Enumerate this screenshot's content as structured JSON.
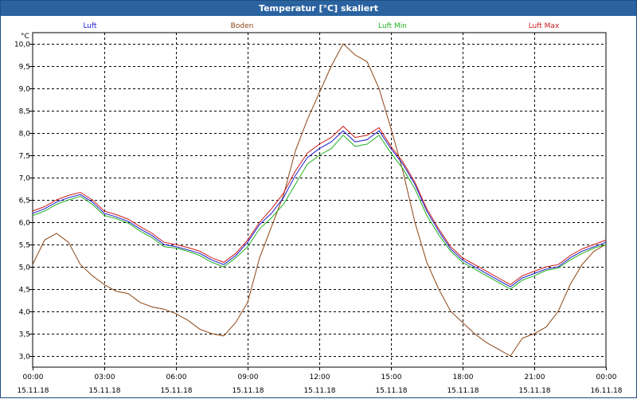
{
  "window": {
    "title": "Temperatur [°C] skaliert"
  },
  "chart_data": {
    "type": "line",
    "title": "Temperatur [°C] skaliert",
    "ylabel": "°C",
    "ylim": [
      2.75,
      10.25
    ],
    "yticks": [
      "10,0",
      "9,5",
      "9,0",
      "8,5",
      "8,0",
      "7,5",
      "7,0",
      "6,5",
      "6,0",
      "5,5",
      "5,0",
      "4,5",
      "4,0",
      "3,5",
      "3,0"
    ],
    "xticks": [
      {
        "time": "00:00",
        "date": "15.11.18"
      },
      {
        "time": "03:00",
        "date": "15.11.18"
      },
      {
        "time": "06:00",
        "date": "15.11.18"
      },
      {
        "time": "09:00",
        "date": "15.11.18"
      },
      {
        "time": "12:00",
        "date": "15.11.18"
      },
      {
        "time": "15:00",
        "date": "15.11.18"
      },
      {
        "time": "18:00",
        "date": "15.11.18"
      },
      {
        "time": "21:00",
        "date": "15.11.18"
      },
      {
        "time": "00:00",
        "date": "16.11.18"
      }
    ],
    "grid": true,
    "series": [
      {
        "name": "Luft",
        "color": "#1a1acc",
        "x": [
          0,
          0.5,
          1,
          1.5,
          2,
          2.5,
          3,
          3.5,
          4,
          4.5,
          5,
          5.5,
          6,
          6.5,
          7,
          7.5,
          8,
          8.5,
          9,
          9.5,
          10,
          10.5,
          11,
          11.5,
          12,
          12.5,
          13,
          13.5,
          14,
          14.5,
          15,
          15.5,
          16,
          16.5,
          17,
          17.5,
          18,
          18.5,
          19,
          19.5,
          20,
          20.5,
          21,
          21.5,
          22,
          22.5,
          23,
          23.5,
          24
        ],
        "values": [
          6.2,
          6.3,
          6.45,
          6.55,
          6.62,
          6.45,
          6.2,
          6.12,
          6.02,
          5.85,
          5.7,
          5.5,
          5.45,
          5.38,
          5.3,
          5.15,
          5.05,
          5.25,
          5.55,
          5.95,
          6.2,
          6.55,
          7.05,
          7.45,
          7.65,
          7.8,
          8.05,
          7.8,
          7.85,
          8.05,
          7.65,
          7.3,
          6.85,
          6.25,
          5.8,
          5.4,
          5.15,
          5.0,
          4.85,
          4.7,
          4.55,
          4.75,
          4.85,
          4.95,
          5.0,
          5.2,
          5.35,
          5.45,
          5.55
        ]
      },
      {
        "name": "Boden",
        "color": "#8b4513",
        "x": [
          0,
          0.5,
          1,
          1.5,
          2,
          2.5,
          3,
          3.5,
          4,
          4.5,
          5,
          5.5,
          6,
          6.5,
          7,
          7.5,
          8,
          8.5,
          9,
          9.5,
          10,
          10.5,
          11,
          11.5,
          12,
          12.5,
          13,
          13.5,
          14,
          14.5,
          15,
          15.5,
          16,
          16.5,
          17,
          17.5,
          18,
          18.5,
          19,
          19.5,
          20,
          20.5,
          21,
          21.5,
          22,
          22.5,
          23,
          23.5,
          24
        ],
        "values": [
          5.05,
          5.6,
          5.75,
          5.55,
          5.05,
          4.8,
          4.6,
          4.45,
          4.4,
          4.2,
          4.1,
          4.05,
          3.95,
          3.8,
          3.6,
          3.5,
          3.45,
          3.75,
          4.2,
          5.2,
          5.9,
          6.6,
          7.6,
          8.3,
          8.9,
          9.5,
          10.0,
          9.75,
          9.6,
          9.0,
          8.1,
          7.15,
          6.0,
          5.1,
          4.5,
          4.0,
          3.75,
          3.5,
          3.3,
          3.15,
          3.0,
          3.4,
          3.5,
          3.65,
          4.0,
          4.6,
          5.05,
          5.35,
          5.5
        ]
      },
      {
        "name": "Luft Min",
        "color": "#20b020",
        "x": [
          0,
          0.5,
          1,
          1.5,
          2,
          2.5,
          3,
          3.5,
          4,
          4.5,
          5,
          5.5,
          6,
          6.5,
          7,
          7.5,
          8,
          8.5,
          9,
          9.5,
          10,
          10.5,
          11,
          11.5,
          12,
          12.5,
          13,
          13.5,
          14,
          14.5,
          15,
          15.5,
          16,
          16.5,
          17,
          17.5,
          18,
          18.5,
          19,
          19.5,
          20,
          20.5,
          21,
          21.5,
          22,
          22.5,
          23,
          23.5,
          24
        ],
        "values": [
          6.15,
          6.25,
          6.4,
          6.5,
          6.58,
          6.4,
          6.15,
          6.08,
          5.98,
          5.8,
          5.65,
          5.45,
          5.42,
          5.35,
          5.25,
          5.1,
          5.0,
          5.2,
          5.45,
          5.85,
          6.1,
          6.4,
          6.85,
          7.3,
          7.5,
          7.65,
          7.95,
          7.7,
          7.75,
          7.95,
          7.55,
          7.2,
          6.75,
          6.15,
          5.72,
          5.35,
          5.1,
          4.95,
          4.8,
          4.65,
          4.5,
          4.7,
          4.8,
          4.92,
          4.97,
          5.15,
          5.3,
          5.42,
          5.5
        ]
      },
      {
        "name": "Luft Max",
        "color": "#cc1a1a",
        "x": [
          0,
          0.5,
          1,
          1.5,
          2,
          2.5,
          3,
          3.5,
          4,
          4.5,
          5,
          5.5,
          6,
          6.5,
          7,
          7.5,
          8,
          8.5,
          9,
          9.5,
          10,
          10.5,
          11,
          11.5,
          12,
          12.5,
          13,
          13.5,
          14,
          14.5,
          15,
          15.5,
          16,
          16.5,
          17,
          17.5,
          18,
          18.5,
          19,
          19.5,
          20,
          20.5,
          21,
          21.5,
          22,
          22.5,
          23,
          23.5,
          24
        ],
        "values": [
          6.25,
          6.35,
          6.5,
          6.6,
          6.67,
          6.5,
          6.25,
          6.17,
          6.07,
          5.9,
          5.75,
          5.55,
          5.5,
          5.43,
          5.35,
          5.2,
          5.1,
          5.3,
          5.6,
          6.0,
          6.3,
          6.65,
          7.15,
          7.55,
          7.75,
          7.9,
          8.15,
          7.9,
          7.95,
          8.12,
          7.7,
          7.35,
          6.9,
          6.3,
          5.85,
          5.45,
          5.2,
          5.05,
          4.9,
          4.75,
          4.6,
          4.8,
          4.9,
          5.0,
          5.05,
          5.25,
          5.4,
          5.5,
          5.6
        ]
      }
    ]
  }
}
